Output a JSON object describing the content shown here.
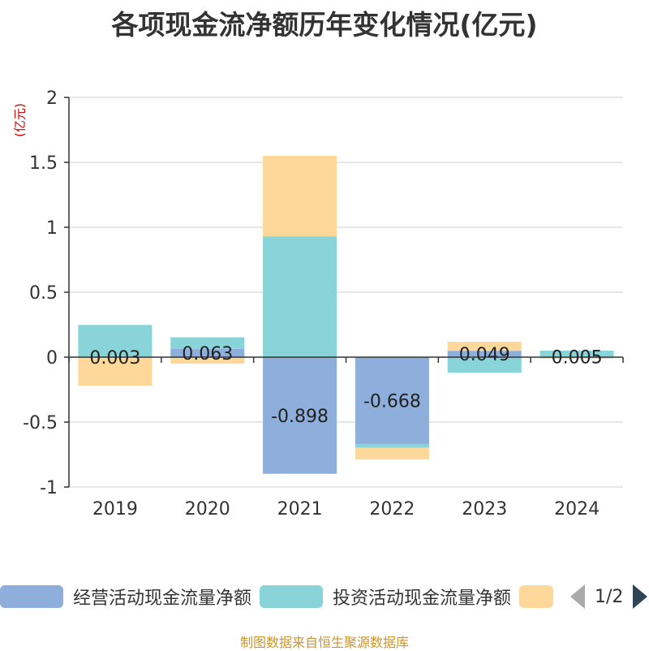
{
  "title": "各项现金流净额历年变化情况(亿元)",
  "unit_label": "(亿元)",
  "source": "制图数据来自恒生聚源数据库",
  "legend": {
    "items": [
      {
        "label": "经营活动现金流量净额",
        "color": "#8eaedb"
      },
      {
        "label": "投资活动现金流量净额",
        "color": "#88d4d8"
      },
      {
        "label": "",
        "color": "#fdd89a"
      }
    ],
    "pager": "1/2"
  },
  "chart_data": {
    "type": "bar",
    "stacked": true,
    "categories": [
      "2019",
      "2020",
      "2021",
      "2022",
      "2023",
      "2024"
    ],
    "ylim": [
      -1,
      2
    ],
    "yticks": [
      "2",
      "1.5",
      "1",
      "0.5",
      "0",
      "-0.5",
      "-1"
    ],
    "grid": true,
    "series": [
      {
        "name": "经营活动现金流量净额",
        "color": "#8eaedb",
        "values": [
          0.003,
          0.063,
          -0.898,
          -0.668,
          0.049,
          0.005
        ],
        "labels": [
          "0.003",
          "0.063",
          "-0.898",
          "-0.668",
          "0.049",
          "0.005"
        ]
      },
      {
        "name": "投资活动现金流量净额",
        "color": "#88d4d8",
        "values": [
          0.245,
          0.09,
          0.93,
          -0.03,
          -0.12,
          0.045
        ]
      },
      {
        "name": "",
        "color": "#fdd89a",
        "values": [
          -0.22,
          -0.05,
          0.62,
          -0.09,
          0.07,
          -0.012
        ]
      }
    ]
  }
}
